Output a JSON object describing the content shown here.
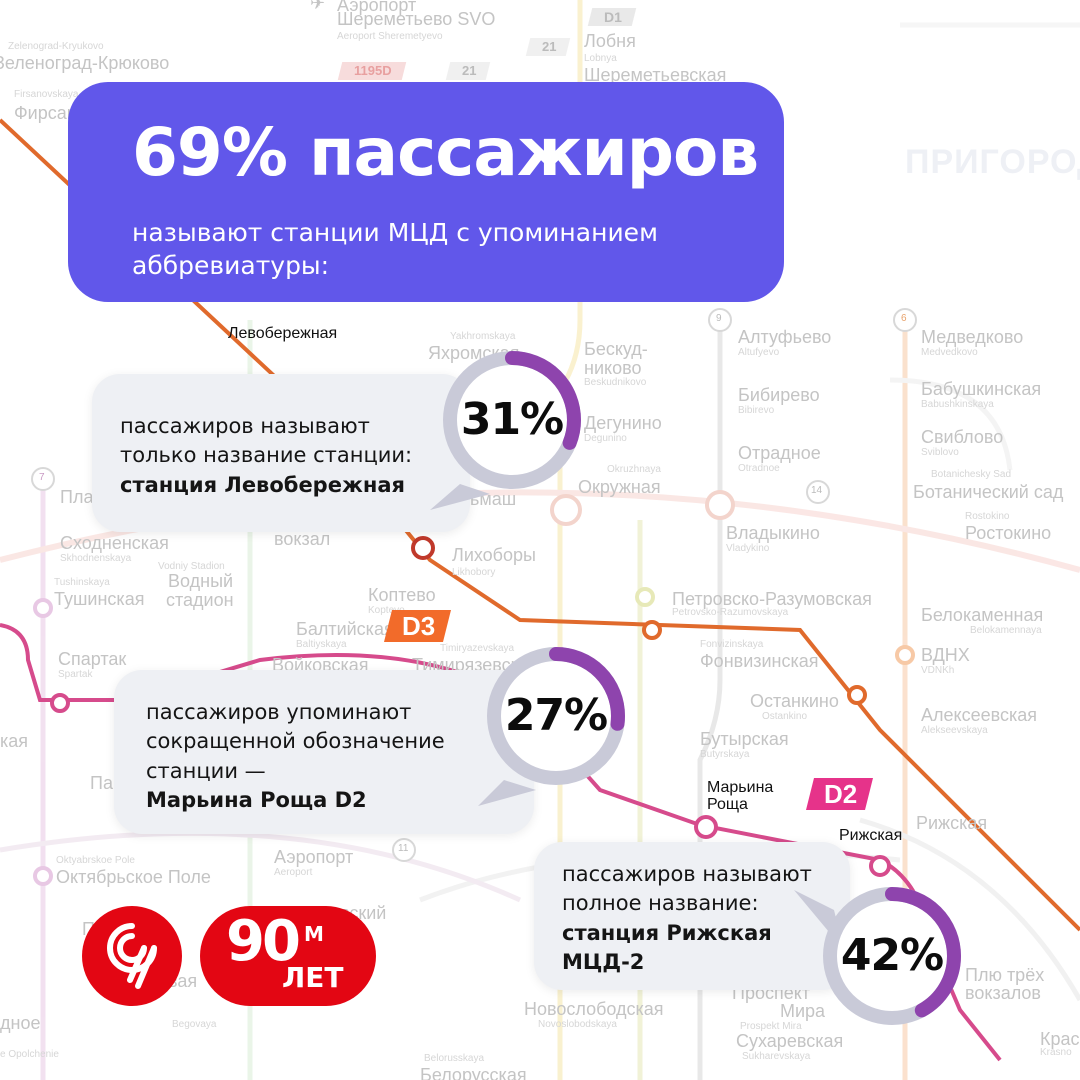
{
  "header": {
    "title": "69% пассажиров",
    "subtitle": "называют станции МЦД с упоминанием аббревиатуры:"
  },
  "cards": [
    {
      "percent": "31%",
      "fraction": 0.31,
      "text": "пассажиров называют только название станции:",
      "bold": "станция Левобережная"
    },
    {
      "percent": "27%",
      "fraction": 0.27,
      "text": "пассажиров упоминают сокращенной обозначение станции —",
      "bold": "Марьина Роща D2"
    },
    {
      "percent": "42%",
      "fraction": 0.42,
      "text": "пассажиров называют полное название:",
      "bold": "станция Рижская МЦД-2"
    }
  ],
  "map": {
    "highlight_stations": {
      "levoberezhnaya": "Левобережная",
      "maryina_roshcha": "Марьина Роща",
      "rizhskaya": "Рижская"
    },
    "badges": {
      "d3": "D3",
      "d2": "D2",
      "d1": "D1",
      "route_21a": "21",
      "route_21b": "21",
      "route_1195": "1195D"
    },
    "stations": {
      "airport": "Аэропорт",
      "sheremetyevo": "Шереметьево SVO",
      "sheremetyevo_tr": "Aeroport Sheremetyevo",
      "lobnya": "Лобня",
      "lobnya_tr": "Lobnya",
      "sheremetyevskaya": "Шереметьевская",
      "zelenograd_tr": "Zelenograd-Kryukovo",
      "zelenograd": "Зеленоград-Крюково",
      "firsanovka_tr": "Firsanovskaya",
      "firsanovka": "Фирсановская",
      "prigorod": "ПРИГОРОД",
      "yakhromskaya_tr": "Yakhromskaya",
      "yakhromskaya": "Яхромская",
      "beskudnikovo": "Бескуд-никово",
      "beskudnikovo_tr": "Beskudnikovo",
      "altufyevo": "Алтуфьево",
      "altufyevo_tr": "Altufyevo",
      "medvedkovo": "Медведково",
      "medvedkovo_tr": "Medvedkovo",
      "bibirevo": "Бибирево",
      "bibirevo_tr": "Bibirevo",
      "babushkinskaya": "Бабушкинская",
      "babushkinskaya_tr": "Babushkinskaya",
      "degunino": "Дегунино",
      "degunino_tr": "Degunino",
      "sviblovo": "Свиблово",
      "sviblovo_tr": "Sviblovo",
      "otradnoe": "Отрадное",
      "otradnoe_tr": "Otradnoe",
      "botanichesky_tr": "Botanichesky Sad",
      "botanichesky": "Ботанический сад",
      "okruzhnaya_tr": "Okruzhnaya",
      "okruzhnaya": "Окружная",
      "selmash": "ьмаш",
      "vladykino": "Владыкино",
      "vladykino_tr": "Vladykino",
      "rostokino_tr": "Rostokino",
      "rostokino": "Ростокино",
      "plan": "Пла",
      "skhodnenskaya": "Сходненская",
      "skhodnenskaya_tr": "Skhodnenskaya",
      "vokzal": "вокзал",
      "likhobory": "Лихоборы",
      "likhobory_tr": "Likhobory",
      "vodny_tr": "Vodniy Stadion",
      "vodny1": "Водный",
      "vodny2": "стадион",
      "tushinskaya_tr": "Tushinskaya",
      "tushinskaya": "Тушинская",
      "koptevo": "Коптево",
      "koptevo_tr": "Koptevo",
      "petrovsko": "Петровско-Разумовская",
      "petrovsko_tr": "Petrovsko-Razumovskaya",
      "belokamennaya": "Белокаменная",
      "belokamennaya_tr": "Belokamennaya",
      "baltiyskaya": "Балтийская",
      "baltiyskaya_tr": "Baltiyskaya",
      "spartak": "Спартак",
      "spartak_tr": "Spartak",
      "voykovskaya": "Войковская",
      "timiryazevskaya_tr": "Timiryazevskaya",
      "timiryazevskaya": "Тимирязевская",
      "fonvizinskaya_tr": "Fonvizinskaya",
      "fonvizinskaya": "Фонвизинская",
      "vdnh": "ВДНХ",
      "vdnh_tr": "VDNKh",
      "ostankino": "Останкино",
      "ostankino_tr": "Ostankino",
      "alekseevskaya": "Алексеевская",
      "alekseevskaya_tr": "Alekseevskaya",
      "kaya": "кая",
      "pa": "Па",
      "butyrskaya": "Бутырская",
      "butyrskaya_tr": "Butyrskaya",
      "rizhskaya_lbl": "Рижская",
      "aeroport": "Аэропорт",
      "aeroport_tr": "Aeroport",
      "oktyabrskoe_tr": "Oktyabrskoe Pole",
      "oktyabrskoe": "Октябрьское Поле",
      "po": "По",
      "dinamo": "вский",
      "beg": "Беговая",
      "beg_tr": "Begovaya",
      "novoslobodskaya": "Новослободская",
      "novoslobodskaya_tr": "Novoslobodskaya",
      "prospekt1": "Проспект",
      "prospekt2": "Мира",
      "prospekt_tr": "Prospekt Mira",
      "komsomolskaya1": "Плю трёх",
      "komsomolskaya2": "вокзалов",
      "sukharevskaya": "Сухаревская",
      "sukharevskaya_tr": "Sukharevskaya",
      "belorusskaya": "Белорусская",
      "belorusskaya_tr": "Belorusskaya",
      "opolchenie1": "дное",
      "opolchenie_tr": "e Opolchenie",
      "krasnoselskaya": "Крас",
      "krasnoselskaya_tr": "Krasno",
      "line9": "9",
      "line6": "6",
      "line7": "7",
      "line14": "14",
      "line11": "11"
    }
  },
  "logos": {
    "anniversary_big": "90",
    "anniversary_small": "ЛЕТ",
    "anniversary_m": "М"
  },
  "colors": {
    "header_bg": "#6157ea",
    "ring_progress": "#8e44ad",
    "ring_track": "#c9cad8",
    "card_bg": "#eef0f4",
    "d3_orange": "#f26b2a",
    "d2_pink": "#e6338a",
    "logo_red": "#e30613"
  }
}
